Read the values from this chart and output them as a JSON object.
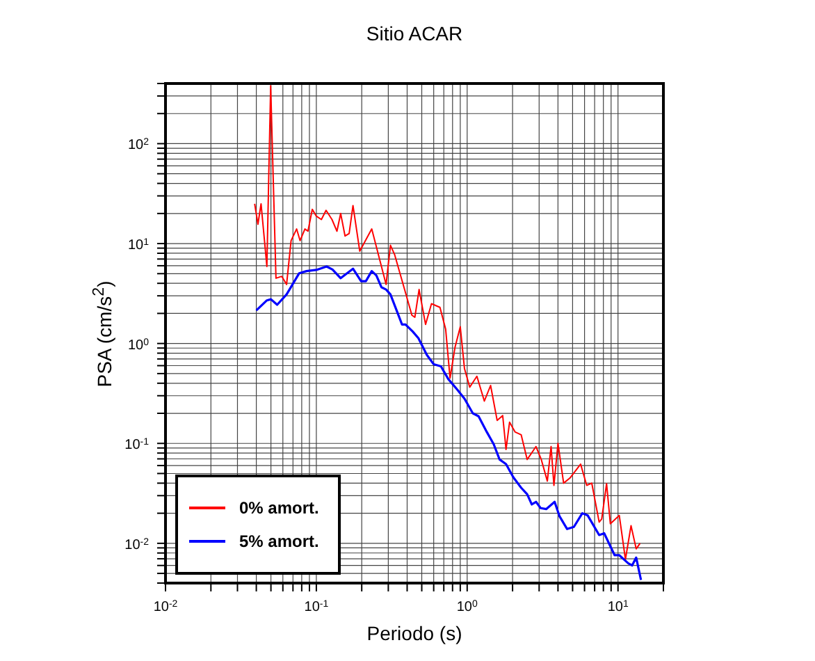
{
  "chart_data": {
    "type": "line",
    "title": "Sitio ACAR",
    "xlabel": "Periodo (s)",
    "ylabel": "PSA (cm/s$^{2}$)",
    "log": "xy",
    "grid": true,
    "legend": "bottom left",
    "marker": "none",
    "line_style": "solid",
    "xlim": [
      0.01,
      20
    ],
    "ylim": [
      0.004,
      400
    ],
    "xticks": [
      {
        "value": 0.01,
        "label": "10$^{-2}$"
      },
      {
        "value": 0.02,
        "label": null
      },
      {
        "value": 0.03,
        "label": null
      },
      {
        "value": 0.04,
        "label": null
      },
      {
        "value": 0.05,
        "label": null
      },
      {
        "value": 0.06,
        "label": null
      },
      {
        "value": 0.07,
        "label": null
      },
      {
        "value": 0.08,
        "label": null
      },
      {
        "value": 0.09,
        "label": null
      },
      {
        "value": 0.1,
        "label": "10$^{-1}$"
      },
      {
        "value": 0.2,
        "label": null
      },
      {
        "value": 0.3,
        "label": null
      },
      {
        "value": 0.4,
        "label": null
      },
      {
        "value": 0.5,
        "label": null
      },
      {
        "value": 0.6,
        "label": null
      },
      {
        "value": 0.7,
        "label": null
      },
      {
        "value": 0.8,
        "label": null
      },
      {
        "value": 0.9,
        "label": null
      },
      {
        "value": 1,
        "label": "10$^{0}$"
      },
      {
        "value": 2,
        "label": null
      },
      {
        "value": 3,
        "label": null
      },
      {
        "value": 4,
        "label": null
      },
      {
        "value": 5,
        "label": null
      },
      {
        "value": 6,
        "label": null
      },
      {
        "value": 7,
        "label": null
      },
      {
        "value": 8,
        "label": null
      },
      {
        "value": 9,
        "label": null
      },
      {
        "value": 10,
        "label": "10$^{1}$"
      },
      {
        "value": 20,
        "label": null
      }
    ],
    "yticks": [
      {
        "value": 0.004,
        "label": null
      },
      {
        "value": 0.005,
        "label": null
      },
      {
        "value": 0.006,
        "label": null
      },
      {
        "value": 0.007,
        "label": null
      },
      {
        "value": 0.008,
        "label": null
      },
      {
        "value": 0.009,
        "label": null
      },
      {
        "value": 0.01,
        "label": "10$^{-2}$"
      },
      {
        "value": 0.02,
        "label": null
      },
      {
        "value": 0.03,
        "label": null
      },
      {
        "value": 0.04,
        "label": null
      },
      {
        "value": 0.05,
        "label": null
      },
      {
        "value": 0.06,
        "label": null
      },
      {
        "value": 0.07,
        "label": null
      },
      {
        "value": 0.08,
        "label": null
      },
      {
        "value": 0.09,
        "label": null
      },
      {
        "value": 0.1,
        "label": "10$^{-1}$"
      },
      {
        "value": 0.2,
        "label": null
      },
      {
        "value": 0.3,
        "label": null
      },
      {
        "value": 0.4,
        "label": null
      },
      {
        "value": 0.5,
        "label": null
      },
      {
        "value": 0.6,
        "label": null
      },
      {
        "value": 0.7,
        "label": null
      },
      {
        "value": 0.8,
        "label": null
      },
      {
        "value": 0.9,
        "label": null
      },
      {
        "value": 1,
        "label": "10$^{0}$"
      },
      {
        "value": 2,
        "label": null
      },
      {
        "value": 3,
        "label": null
      },
      {
        "value": 4,
        "label": null
      },
      {
        "value": 5,
        "label": null
      },
      {
        "value": 6,
        "label": null
      },
      {
        "value": 7,
        "label": null
      },
      {
        "value": 8,
        "label": null
      },
      {
        "value": 9,
        "label": null
      },
      {
        "value": 10,
        "label": "10$^{1}$"
      },
      {
        "value": 20,
        "label": null
      },
      {
        "value": 30,
        "label": null
      },
      {
        "value": 40,
        "label": null
      },
      {
        "value": 50,
        "label": null
      },
      {
        "value": 60,
        "label": null
      },
      {
        "value": 70,
        "label": null
      },
      {
        "value": 80,
        "label": null
      },
      {
        "value": 90,
        "label": null
      },
      {
        "value": 100,
        "label": "10$^{2}$"
      },
      {
        "value": 200,
        "label": null
      },
      {
        "value": 300,
        "label": null
      },
      {
        "value": 400,
        "label": null
      }
    ],
    "series": [
      {
        "name": "0% amort.",
        "color": "#ff0000",
        "x": [
          0.039,
          0.041,
          0.043,
          0.047,
          0.0498,
          0.054,
          0.059,
          0.0635,
          0.068,
          0.074,
          0.078,
          0.084,
          0.088,
          0.094,
          0.1,
          0.108,
          0.116,
          0.127,
          0.137,
          0.145,
          0.155,
          0.165,
          0.175,
          0.194,
          0.233,
          0.29,
          0.31,
          0.33,
          0.38,
          0.43,
          0.45,
          0.48,
          0.53,
          0.58,
          0.66,
          0.72,
          0.77,
          0.83,
          0.9,
          0.96,
          1.04,
          1.16,
          1.3,
          1.43,
          1.58,
          1.72,
          1.81,
          1.91,
          2.08,
          2.28,
          2.5,
          2.86,
          3.1,
          3.4,
          3.6,
          3.76,
          4.0,
          4.36,
          4.8,
          5.65,
          6.2,
          6.7,
          7.5,
          7.8,
          8.4,
          8.9,
          10.2,
          11.2,
          12.2,
          13.2,
          14.0
        ],
        "values": [
          25,
          15.6,
          25,
          5.9,
          380,
          4.5,
          4.7,
          3.9,
          10.7,
          14,
          10.7,
          14,
          13.3,
          22,
          18.8,
          17.4,
          21.5,
          17.4,
          13.3,
          20,
          11.9,
          12.6,
          24,
          8.4,
          14,
          3.9,
          9.6,
          7.8,
          3.7,
          1.92,
          1.83,
          3.47,
          1.55,
          2.5,
          2.3,
          1.39,
          0.45,
          0.91,
          1.47,
          0.56,
          0.365,
          0.47,
          0.265,
          0.38,
          0.17,
          0.19,
          0.087,
          0.163,
          0.13,
          0.122,
          0.069,
          0.093,
          0.069,
          0.042,
          0.093,
          0.038,
          0.1,
          0.04,
          0.045,
          0.062,
          0.038,
          0.04,
          0.0163,
          0.0175,
          0.0395,
          0.0157,
          0.019,
          0.0069,
          0.015,
          0.0088,
          0.01
        ]
      },
      {
        "name": "5% amort.",
        "color": "#0000ff",
        "x": [
          0.04,
          0.047,
          0.05,
          0.055,
          0.0635,
          0.077,
          0.086,
          0.1,
          0.117,
          0.128,
          0.145,
          0.175,
          0.198,
          0.213,
          0.233,
          0.25,
          0.27,
          0.29,
          0.31,
          0.37,
          0.39,
          0.435,
          0.475,
          0.54,
          0.6,
          0.67,
          0.75,
          0.86,
          0.96,
          1.09,
          1.19,
          1.35,
          1.5,
          1.64,
          1.81,
          2.02,
          2.28,
          2.5,
          2.68,
          2.86,
          3.07,
          3.34,
          3.8,
          4.1,
          4.6,
          5.1,
          5.8,
          6.3,
          7.5,
          8.1,
          9.5,
          10.2,
          11.7,
          12.4,
          13.2,
          14.2
        ],
        "values": [
          2.14,
          2.7,
          2.77,
          2.44,
          3.1,
          5.05,
          5.3,
          5.45,
          5.9,
          5.5,
          4.5,
          5.6,
          4.2,
          4.2,
          5.3,
          4.8,
          3.66,
          3.47,
          3.1,
          1.55,
          1.55,
          1.32,
          1.13,
          0.77,
          0.62,
          0.59,
          0.44,
          0.345,
          0.28,
          0.2,
          0.187,
          0.13,
          0.098,
          0.069,
          0.062,
          0.046,
          0.036,
          0.031,
          0.0245,
          0.026,
          0.0225,
          0.022,
          0.026,
          0.0186,
          0.0139,
          0.0146,
          0.02,
          0.019,
          0.0121,
          0.0126,
          0.0076,
          0.0076,
          0.0063,
          0.006,
          0.0072,
          0.0043
        ]
      }
    ]
  }
}
